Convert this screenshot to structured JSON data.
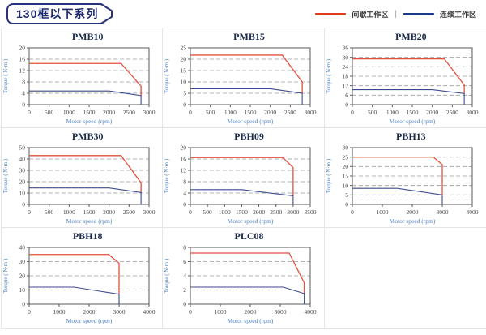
{
  "header": {
    "title": "130框以下系列",
    "legend": {
      "intermittent": {
        "label": "间歇工作区",
        "color": "#e23a1c"
      },
      "separator": "|",
      "continuous": {
        "label": "连续工作区",
        "color": "#1e3a85"
      }
    }
  },
  "styles": {
    "red_line": "#e2503c",
    "blue_line": "#3d4b8e",
    "axis_label_color": "#4a7ec2",
    "tick_color": "#474747",
    "grid_color": "#9a9a9a",
    "plot_border_color": "#5a5a5a",
    "chart_title_color": "#1b2a4a"
  },
  "chart_data": [
    {
      "type": "line",
      "title": "PMB10",
      "xlabel": "Motor speed (rpm)",
      "ylabel": "Torque ( N·m )",
      "xlim": [
        0,
        3000
      ],
      "xticks": [
        0,
        500,
        1000,
        1500,
        2000,
        2500,
        3000
      ],
      "ylim": [
        0,
        20
      ],
      "yticks": [
        0,
        4,
        8,
        12,
        16,
        20
      ],
      "grid": "horizontal-dashed",
      "legend_position": "none",
      "series": [
        {
          "name": "间歇工作区",
          "color_key": "red_line",
          "points": [
            [
              0,
              14.5
            ],
            [
              2300,
              14.5
            ],
            [
              2800,
              6.5
            ],
            [
              2800,
              3.2
            ]
          ]
        },
        {
          "name": "连续工作区",
          "color_key": "blue_line",
          "points": [
            [
              0,
              4.8
            ],
            [
              2000,
              4.8
            ],
            [
              2800,
              3.2
            ],
            [
              2800,
              0
            ]
          ]
        }
      ]
    },
    {
      "type": "line",
      "title": "PMB15",
      "xlabel": "Motor speed (rpm)",
      "ylabel": "Torque ( N·m )",
      "xlim": [
        0,
        3000
      ],
      "xticks": [
        0,
        500,
        1000,
        1500,
        2000,
        2500,
        3000
      ],
      "ylim": [
        0,
        25
      ],
      "yticks": [
        0,
        5,
        10,
        15,
        20,
        25
      ],
      "grid": "horizontal-dashed",
      "legend_position": "none",
      "series": [
        {
          "name": "间歇工作区",
          "color_key": "red_line",
          "points": [
            [
              0,
              21.8
            ],
            [
              2300,
              21.8
            ],
            [
              2800,
              10
            ],
            [
              2800,
              5
            ]
          ]
        },
        {
          "name": "连续工作区",
          "color_key": "blue_line",
          "points": [
            [
              0,
              7
            ],
            [
              2000,
              7
            ],
            [
              2800,
              5
            ],
            [
              2800,
              0
            ]
          ]
        }
      ]
    },
    {
      "type": "line",
      "title": "PMB20",
      "xlabel": "Motor speed (rpm)",
      "ylabel": "Torque ( N·m )",
      "xlim": [
        0,
        3000
      ],
      "xticks": [
        0,
        500,
        1000,
        1500,
        2000,
        2500,
        3000
      ],
      "ylim": [
        0,
        36
      ],
      "yticks": [
        0,
        6,
        12,
        18,
        24,
        30,
        36
      ],
      "grid": "horizontal-dashed",
      "legend_position": "none",
      "series": [
        {
          "name": "间歇工作区",
          "color_key": "red_line",
          "points": [
            [
              0,
              29
            ],
            [
              2300,
              29
            ],
            [
              2800,
              12.5
            ],
            [
              2800,
              7
            ]
          ]
        },
        {
          "name": "连续工作区",
          "color_key": "blue_line",
          "points": [
            [
              0,
              9.5
            ],
            [
              2000,
              9.5
            ],
            [
              2800,
              7
            ],
            [
              2800,
              0
            ]
          ]
        }
      ]
    },
    {
      "type": "line",
      "title": "PMB30",
      "xlabel": "Motor speed (rpm)",
      "ylabel": "Torque ( N·m )",
      "xlim": [
        0,
        3000
      ],
      "xticks": [
        0,
        500,
        1000,
        1500,
        2000,
        2500,
        3000
      ],
      "ylim": [
        0,
        50
      ],
      "yticks": [
        0,
        10,
        20,
        30,
        40,
        50
      ],
      "grid": "horizontal-dashed",
      "legend_position": "none",
      "series": [
        {
          "name": "间歇工作区",
          "color_key": "red_line",
          "points": [
            [
              0,
              43
            ],
            [
              2300,
              43
            ],
            [
              2800,
              19
            ],
            [
              2800,
              10.5
            ]
          ]
        },
        {
          "name": "连续工作区",
          "color_key": "blue_line",
          "points": [
            [
              0,
              14.5
            ],
            [
              2000,
              14.5
            ],
            [
              2800,
              10.5
            ],
            [
              2800,
              0
            ]
          ]
        }
      ]
    },
    {
      "type": "line",
      "title": "PBH09",
      "xlabel": "Motor speed (rpm)",
      "ylabel": "Torque ( N·m )",
      "xlim": [
        0,
        3500
      ],
      "xticks": [
        0,
        500,
        1000,
        1500,
        2000,
        2500,
        3000,
        3500
      ],
      "ylim": [
        0,
        20
      ],
      "yticks": [
        0,
        4,
        8,
        12,
        16,
        20
      ],
      "grid": "horizontal-dashed",
      "legend_position": "none",
      "series": [
        {
          "name": "间歇工作区",
          "color_key": "red_line",
          "points": [
            [
              0,
              16.5
            ],
            [
              2700,
              16.5
            ],
            [
              3000,
              13
            ],
            [
              3000,
              3
            ]
          ]
        },
        {
          "name": "连续工作区",
          "color_key": "blue_line",
          "points": [
            [
              0,
              5.2
            ],
            [
              1500,
              5.2
            ],
            [
              3000,
              3
            ],
            [
              3000,
              0
            ]
          ]
        }
      ]
    },
    {
      "type": "line",
      "title": "PBH13",
      "xlabel": "Motor speed (rpm)",
      "ylabel": "Torque ( N·m )",
      "xlim": [
        0,
        4000
      ],
      "xticks": [
        0,
        1000,
        2000,
        3000,
        4000
      ],
      "ylim": [
        0,
        30
      ],
      "yticks": [
        0,
        5,
        10,
        15,
        20,
        25,
        30
      ],
      "grid": "horizontal-dashed",
      "legend_position": "none",
      "series": [
        {
          "name": "间歇工作区",
          "color_key": "red_line",
          "points": [
            [
              0,
              25
            ],
            [
              2700,
              25
            ],
            [
              3000,
              21
            ],
            [
              3000,
              5
            ]
          ]
        },
        {
          "name": "连续工作区",
          "color_key": "blue_line",
          "points": [
            [
              0,
              8.5
            ],
            [
              1500,
              8.5
            ],
            [
              3000,
              5
            ],
            [
              3000,
              0
            ]
          ]
        }
      ]
    },
    {
      "type": "line",
      "title": "PBH18",
      "xlabel": "Motor speed (rpm)",
      "ylabel": "Torque ( N·m )",
      "xlim": [
        0,
        4000
      ],
      "xticks": [
        0,
        1000,
        2000,
        3000,
        4000
      ],
      "ylim": [
        0,
        40
      ],
      "yticks": [
        0,
        10,
        20,
        30,
        40
      ],
      "grid": "horizontal-dashed",
      "legend_position": "none",
      "series": [
        {
          "name": "间歇工作区",
          "color_key": "red_line",
          "points": [
            [
              0,
              35
            ],
            [
              2650,
              35
            ],
            [
              3000,
              29
            ],
            [
              3000,
              7
            ]
          ]
        },
        {
          "name": "连续工作区",
          "color_key": "blue_line",
          "points": [
            [
              0,
              12
            ],
            [
              1500,
              12
            ],
            [
              3000,
              7
            ],
            [
              3000,
              0
            ]
          ]
        }
      ]
    },
    {
      "type": "line",
      "title": "PLC08",
      "xlabel": "Motor speed (rpm)",
      "ylabel": "Torque ( N·m )",
      "xlim": [
        0,
        4000
      ],
      "xticks": [
        0,
        1000,
        2000,
        3000,
        4000
      ],
      "ylim": [
        0,
        8
      ],
      "yticks": [
        0,
        2,
        4,
        6,
        8
      ],
      "grid": "horizontal-dashed",
      "legend_position": "none",
      "series": [
        {
          "name": "间歇工作区",
          "color_key": "red_line",
          "points": [
            [
              0,
              7.2
            ],
            [
              3300,
              7.2
            ],
            [
              3800,
              3
            ],
            [
              3800,
              1.5
            ]
          ]
        },
        {
          "name": "连续工作区",
          "color_key": "blue_line",
          "points": [
            [
              0,
              2.4
            ],
            [
              3100,
              2.4
            ],
            [
              3800,
              1.5
            ],
            [
              3800,
              0
            ]
          ]
        }
      ]
    }
  ]
}
